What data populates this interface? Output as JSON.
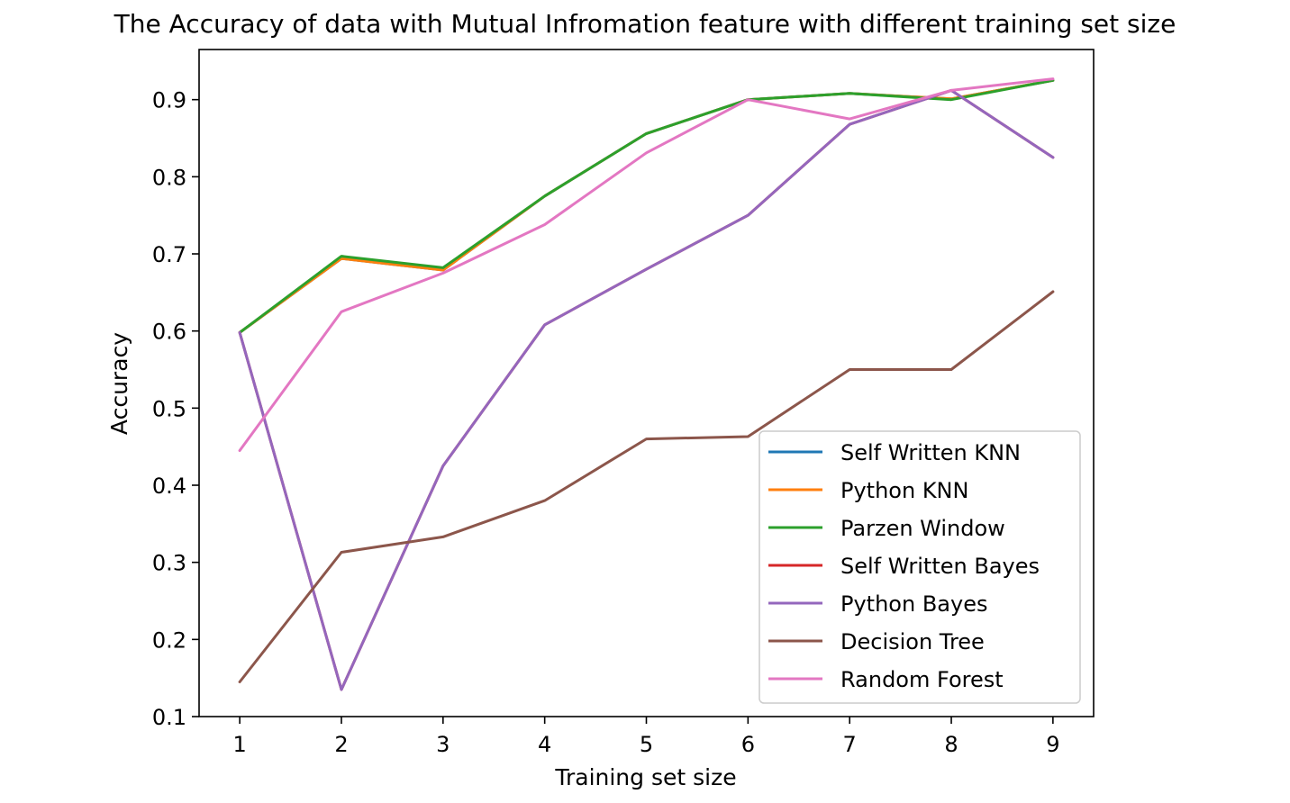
{
  "chart_data": {
    "type": "line",
    "title": "The Accuracy of data with Mutual Infromation feature with different training set size",
    "xlabel": "Training set size",
    "ylabel": "Accuracy",
    "x": [
      1,
      2,
      3,
      4,
      5,
      6,
      7,
      8,
      9
    ],
    "xlim": [
      0.6,
      9.4
    ],
    "ylim": [
      0.1,
      0.965
    ],
    "xticks": [
      "1",
      "2",
      "3",
      "4",
      "5",
      "6",
      "7",
      "8",
      "9"
    ],
    "yticks": [
      "0.1",
      "0.2",
      "0.3",
      "0.4",
      "0.5",
      "0.6",
      "0.7",
      "0.8",
      "0.9"
    ],
    "grid": false,
    "legend_position": "lower-right",
    "series": [
      {
        "name": "Self Written KNN",
        "color": "#1f77b4",
        "values": [
          0.598,
          0.694,
          0.679,
          0.775,
          0.856,
          0.9,
          0.908,
          0.901,
          0.925
        ]
      },
      {
        "name": "Python KNN",
        "color": "#ff7f0e",
        "values": [
          0.598,
          0.694,
          0.679,
          0.775,
          0.856,
          0.9,
          0.908,
          0.901,
          0.925
        ]
      },
      {
        "name": "Parzen Window",
        "color": "#2ca02c",
        "values": [
          0.598,
          0.697,
          0.682,
          0.775,
          0.856,
          0.9,
          0.908,
          0.9,
          0.925
        ]
      },
      {
        "name": "Self Written Bayes",
        "color": "#d62728",
        "values": [
          0.598,
          0.135,
          0.425,
          0.608,
          0.68,
          0.75,
          0.868,
          0.912,
          0.825
        ]
      },
      {
        "name": "Python Bayes",
        "color": "#9467bd",
        "values": [
          0.598,
          0.135,
          0.425,
          0.608,
          0.68,
          0.75,
          0.868,
          0.912,
          0.825
        ]
      },
      {
        "name": "Decision Tree",
        "color": "#8c564b",
        "values": [
          0.145,
          0.313,
          0.333,
          0.38,
          0.46,
          0.463,
          0.55,
          0.55,
          0.651
        ]
      },
      {
        "name": "Random Forest",
        "color": "#e377c2",
        "values": [
          0.445,
          0.625,
          0.675,
          0.738,
          0.831,
          0.9,
          0.875,
          0.912,
          0.927
        ]
      }
    ]
  }
}
